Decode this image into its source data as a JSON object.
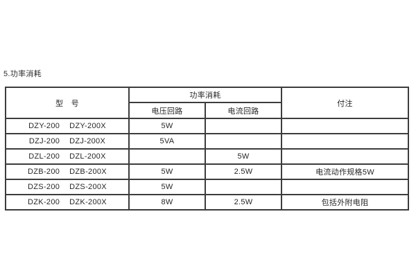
{
  "page": {
    "title": "5.功率消耗"
  },
  "colors": {
    "background": "#ffffff",
    "border": "#3c3c3c",
    "text": "#262626"
  },
  "table": {
    "headers": {
      "model": "型　号",
      "power_group": "功率消耗",
      "voltage_circuit": "电压回路",
      "current_circuit": "电流回路",
      "notes": "付注"
    },
    "rows": [
      {
        "models": [
          "DZY-200",
          "DZY-200X"
        ],
        "voltage": "5W",
        "current": "",
        "note": ""
      },
      {
        "models": [
          "DZJ-200",
          "DZJ-200X"
        ],
        "voltage": "5VA",
        "current": "",
        "note": ""
      },
      {
        "models": [
          "DZL-200",
          "DZL-200X"
        ],
        "voltage": "",
        "current": "5W",
        "note": ""
      },
      {
        "models": [
          "DZB-200",
          "DZB-200X"
        ],
        "voltage": "5W",
        "current": "2.5W",
        "note": "电流动作规格5W"
      },
      {
        "models": [
          "DZS-200",
          "DZS-200X"
        ],
        "voltage": "5W",
        "current": "",
        "note": ""
      },
      {
        "models": [
          "DZK-200",
          "DZK-200X"
        ],
        "voltage": "8W",
        "current": "2.5W",
        "note": "包括外附电阻"
      }
    ]
  }
}
